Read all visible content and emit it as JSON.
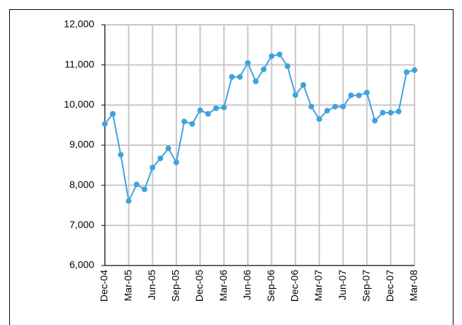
{
  "chart_data": {
    "type": "line",
    "categories": [
      "Dec-04",
      null,
      null,
      "Mar-05",
      null,
      null,
      "Jun-05",
      null,
      null,
      "Sep-05",
      null,
      null,
      "Dec-05",
      null,
      null,
      "Mar-06",
      null,
      null,
      "Jun-06",
      null,
      null,
      "Sep-06",
      null,
      null,
      "Dec-06",
      null,
      null,
      "Mar-07",
      null,
      null,
      "Jun-07",
      null,
      null,
      "Sep-07",
      null,
      null,
      "Dec-07",
      null,
      null,
      "Mar-08"
    ],
    "values": [
      9530,
      9780,
      8760,
      7610,
      8020,
      7900,
      8440,
      8670,
      8920,
      8570,
      9590,
      9530,
      9870,
      9780,
      9920,
      9940,
      10700,
      10700,
      11050,
      10590,
      10890,
      11220,
      11260,
      10970,
      10250,
      10500,
      9960,
      9650,
      9860,
      9960,
      9960,
      10240,
      10240,
      10310,
      9610,
      9810,
      9810,
      9840,
      10820,
      10870
    ],
    "color": "#3fa3dd",
    "ylim": [
      6000,
      12000
    ],
    "yticks": [
      {
        "value": 6000,
        "label": "6,000"
      },
      {
        "value": 7000,
        "label": "7,000"
      },
      {
        "value": 8000,
        "label": "8,000"
      },
      {
        "value": 9000,
        "label": "9,000"
      },
      {
        "value": 10000,
        "label": "10,000"
      },
      {
        "value": 11000,
        "label": "11,000"
      },
      {
        "value": 12000,
        "label": "12,000"
      }
    ],
    "grid": true
  }
}
